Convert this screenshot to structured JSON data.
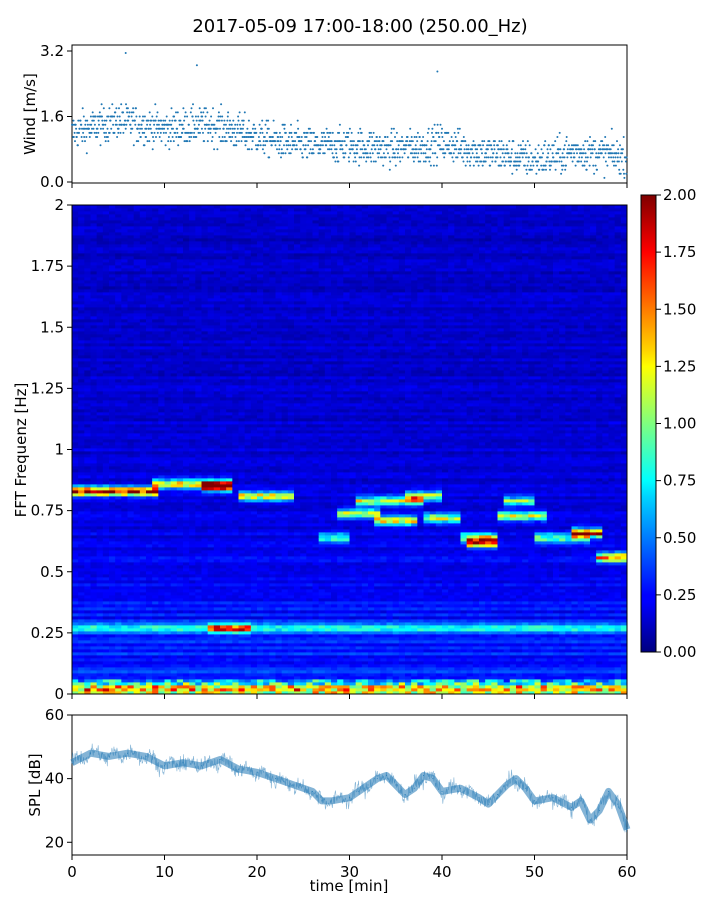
{
  "figure_title": "2017-05-09 17:00-18:00 (250.00_Hz)",
  "colors": {
    "wind_points": "#1f77b4",
    "spl_line": "#1f77b4",
    "axis": "#000000"
  },
  "chart_data": [
    {
      "type": "scatter",
      "name": "wind",
      "title": "",
      "xlabel": "",
      "ylabel": "Wind [m/s]",
      "xlim": [
        0,
        60
      ],
      "ylim": [
        0.0,
        3.2
      ],
      "yticks": [
        "0.0",
        "1.6",
        "3.2"
      ],
      "yticks_values": [
        0.0,
        1.6,
        3.2
      ],
      "trend": {
        "x": [
          0,
          5,
          10,
          15,
          20,
          25,
          30,
          35,
          40,
          45,
          50,
          55,
          60
        ],
        "y": [
          1.2,
          1.5,
          1.3,
          1.4,
          1.1,
          0.9,
          0.9,
          0.8,
          0.95,
          0.7,
          0.55,
          0.75,
          0.6
        ]
      },
      "max_values": {
        "x": [
          5.8,
          13.5,
          39.5
        ],
        "y": [
          3.15,
          2.85,
          2.7
        ]
      }
    },
    {
      "type": "heatmap",
      "name": "spectrogram",
      "ylabel": "FFT Frequenz [Hz]",
      "xlim": [
        0,
        60
      ],
      "ylim": [
        0,
        2
      ],
      "yticks": [
        "0",
        "0.25",
        "0.5",
        "0.75",
        "1",
        "1.25",
        "1.5",
        "1.75",
        "2"
      ],
      "yticks_values": [
        0,
        0.25,
        0.5,
        0.75,
        1,
        1.25,
        1.5,
        1.75,
        2
      ],
      "colorbar": {
        "range": [
          0.0,
          2.0
        ],
        "ticks": [
          "0.00",
          "0.25",
          "0.50",
          "0.75",
          "1.00",
          "1.25",
          "1.50",
          "1.75",
          "2.00"
        ],
        "ticks_values": [
          0,
          0.25,
          0.5,
          0.75,
          1.0,
          1.25,
          1.5,
          1.75,
          2.0
        ],
        "colormap": "jet"
      },
      "ridge_segments": [
        {
          "t0": 0,
          "t1": 9,
          "f": 0.83,
          "amp": 1.7
        },
        {
          "t0": 9,
          "t1": 17,
          "f": 0.86,
          "amp": 1.2
        },
        {
          "t0": 14,
          "t1": 17,
          "f": 0.85,
          "amp": 1.6
        },
        {
          "t0": 18,
          "t1": 24,
          "f": 0.81,
          "amp": 1.1
        },
        {
          "t0": 27,
          "t1": 30,
          "f": 0.64,
          "amp": 0.75
        },
        {
          "t0": 29,
          "t1": 33,
          "f": 0.74,
          "amp": 0.9
        },
        {
          "t0": 31,
          "t1": 38,
          "f": 0.79,
          "amp": 1.0
        },
        {
          "t0": 33,
          "t1": 37,
          "f": 0.71,
          "amp": 1.1
        },
        {
          "t0": 36,
          "t1": 40,
          "f": 0.81,
          "amp": 1.05
        },
        {
          "t0": 38,
          "t1": 42,
          "f": 0.72,
          "amp": 0.95
        },
        {
          "t0": 42,
          "t1": 46,
          "f": 0.64,
          "amp": 1.0
        },
        {
          "t0": 43,
          "t1": 46,
          "f": 0.62,
          "amp": 1.5
        },
        {
          "t0": 46,
          "t1": 51,
          "f": 0.73,
          "amp": 0.95
        },
        {
          "t0": 47,
          "t1": 50,
          "f": 0.79,
          "amp": 0.85
        },
        {
          "t0": 50,
          "t1": 56,
          "f": 0.64,
          "amp": 0.8
        },
        {
          "t0": 54,
          "t1": 57,
          "f": 0.66,
          "amp": 1.6
        },
        {
          "t0": 57,
          "t1": 60,
          "f": 0.56,
          "amp": 1.3
        },
        {
          "t0": 0,
          "t1": 60,
          "f": 0.27,
          "amp": 0.5
        },
        {
          "t0": 15,
          "t1": 19,
          "f": 0.27,
          "amp": 1.0
        },
        {
          "t0": 0,
          "t1": 60,
          "f": 0.02,
          "amp": 0.8
        }
      ]
    },
    {
      "type": "line",
      "name": "spl",
      "xlabel": "time [min]",
      "ylabel": "SPL [dB]",
      "xlim": [
        0,
        60
      ],
      "ylim": [
        16,
        60
      ],
      "yticks": [
        "20",
        "40",
        "60"
      ],
      "yticks_values": [
        20,
        40,
        60
      ],
      "xticks": [
        "0",
        "10",
        "20",
        "30",
        "40",
        "50",
        "60"
      ],
      "xticks_values": [
        0,
        10,
        20,
        30,
        40,
        50,
        60
      ],
      "x": [
        0,
        2,
        4,
        6,
        8,
        10,
        12,
        14,
        16,
        18,
        20,
        22,
        24,
        26,
        27,
        28,
        30,
        31,
        32,
        33,
        34,
        35,
        36,
        37,
        38,
        39,
        40,
        42,
        44,
        45,
        46,
        47,
        48,
        49,
        50,
        52,
        54,
        55,
        56,
        57,
        58,
        59,
        60
      ],
      "y": [
        45,
        48,
        47,
        48,
        47,
        44,
        45,
        44,
        46,
        43,
        42,
        40,
        38,
        36,
        33,
        33,
        34,
        36,
        38,
        40,
        41,
        38,
        35,
        37,
        41,
        40,
        36,
        37,
        34,
        32,
        35,
        38,
        40,
        37,
        33,
        34,
        31,
        33,
        27,
        30,
        36,
        32,
        24
      ]
    }
  ]
}
